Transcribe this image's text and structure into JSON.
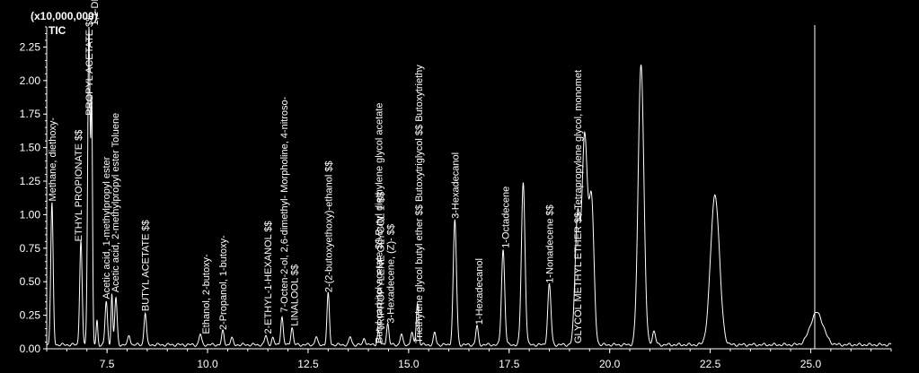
{
  "chart_data": {
    "type": "line",
    "y_scale_label": "(x10,000,000)",
    "trace_label": "TIC",
    "xlim": [
      6.0,
      27.0
    ],
    "ylim": [
      0.0,
      2.4
    ],
    "x_ticks": [
      7.5,
      10.0,
      12.5,
      15.0,
      17.5,
      20.0,
      22.5,
      25.0
    ],
    "x_tick_labels": [
      "7.5",
      "10.0",
      "12.5",
      "15.0",
      "17.5",
      "20.0",
      "22.5",
      "25.0"
    ],
    "y_ticks": [
      0.0,
      0.25,
      0.5,
      0.75,
      1.0,
      1.25,
      1.5,
      1.75,
      2.0,
      2.25
    ],
    "y_tick_labels": [
      "0.00",
      "0.25",
      "0.50",
      "0.75",
      "1.00",
      "1.25",
      "1.50",
      "1.75",
      "2.00",
      "2.25"
    ],
    "marker_x": 25.1,
    "baseline": 0.03,
    "peaks": [
      {
        "x": 6.13,
        "y": 1.05,
        "w": 0.03
      },
      {
        "x": 6.85,
        "y": 0.78,
        "w": 0.03
      },
      {
        "x": 7.05,
        "y": 2.4,
        "w": 0.03
      },
      {
        "x": 7.12,
        "y": 1.7,
        "w": 0.02
      },
      {
        "x": 7.25,
        "y": 0.18,
        "w": 0.02
      },
      {
        "x": 7.48,
        "y": 0.32,
        "w": 0.03
      },
      {
        "x": 7.62,
        "y": 0.38,
        "w": 0.02
      },
      {
        "x": 7.72,
        "y": 0.35,
        "w": 0.03
      },
      {
        "x": 8.05,
        "y": 0.07,
        "w": 0.03
      },
      {
        "x": 8.45,
        "y": 0.24,
        "w": 0.03
      },
      {
        "x": 9.82,
        "y": 0.08,
        "w": 0.03
      },
      {
        "x": 10.38,
        "y": 0.1,
        "w": 0.03
      },
      {
        "x": 10.6,
        "y": 0.05,
        "w": 0.03
      },
      {
        "x": 11.45,
        "y": 0.07,
        "w": 0.03
      },
      {
        "x": 11.62,
        "y": 0.05,
        "w": 0.03
      },
      {
        "x": 11.85,
        "y": 0.21,
        "w": 0.03
      },
      {
        "x": 12.1,
        "y": 0.13,
        "w": 0.03
      },
      {
        "x": 12.7,
        "y": 0.06,
        "w": 0.03
      },
      {
        "x": 13.0,
        "y": 0.38,
        "w": 0.03
      },
      {
        "x": 13.55,
        "y": 0.06,
        "w": 0.03
      },
      {
        "x": 13.9,
        "y": 0.05,
        "w": 0.03
      },
      {
        "x": 14.25,
        "y": 0.1,
        "w": 0.03
      },
      {
        "x": 14.48,
        "y": 0.16,
        "w": 0.03
      },
      {
        "x": 14.82,
        "y": 0.08,
        "w": 0.03
      },
      {
        "x": 15.08,
        "y": 0.09,
        "w": 0.03
      },
      {
        "x": 15.22,
        "y": 0.31,
        "w": 0.03
      },
      {
        "x": 15.65,
        "y": 0.09,
        "w": 0.03
      },
      {
        "x": 16.15,
        "y": 0.93,
        "w": 0.04
      },
      {
        "x": 16.7,
        "y": 0.14,
        "w": 0.03
      },
      {
        "x": 17.35,
        "y": 0.71,
        "w": 0.04
      },
      {
        "x": 17.85,
        "y": 1.21,
        "w": 0.045
      },
      {
        "x": 18.5,
        "y": 0.45,
        "w": 0.04
      },
      {
        "x": 19.2,
        "y": 0.95,
        "w": 0.06
      },
      {
        "x": 19.38,
        "y": 1.55,
        "w": 0.07
      },
      {
        "x": 19.55,
        "y": 1.05,
        "w": 0.06
      },
      {
        "x": 20.78,
        "y": 2.1,
        "w": 0.07
      },
      {
        "x": 21.1,
        "y": 0.1,
        "w": 0.04
      },
      {
        "x": 22.62,
        "y": 1.12,
        "w": 0.11
      },
      {
        "x": 25.15,
        "y": 0.24,
        "w": 0.16
      }
    ]
  },
  "peak_labels": [
    {
      "x": 6.13,
      "y": 1.08,
      "text": "Methane, diethoxy-"
    },
    {
      "x": 6.78,
      "y": 0.78,
      "text": "ETHYL PROPIONATE $$"
    },
    {
      "x": 7.05,
      "y": 1.72,
      "text": "PROPYL ACETATE $$"
    },
    {
      "x": 7.18,
      "y": 2.39,
      "text": "1,1-DIETHOXY ETHANE $$"
    },
    {
      "x": 7.48,
      "y": 0.35,
      "text": "Acetic acid, 1-methylpropyl ester"
    },
    {
      "x": 7.7,
      "y": 0.4,
      "text": "Acetic acid, 2-methylpropyl ester Toluene"
    },
    {
      "x": 8.45,
      "y": 0.26,
      "text": "BUTYL ACETATE $$"
    },
    {
      "x": 9.95,
      "y": 0.09,
      "text": "Ethanol, 2-butoxy-"
    },
    {
      "x": 10.38,
      "y": 0.12,
      "text": "2-Propanol, 1-butoxy-"
    },
    {
      "x": 11.5,
      "y": 0.09,
      "text": "2-ETHYL-1-HEXANOL $$"
    },
    {
      "x": 11.9,
      "y": 0.25,
      "text": "7-Octen-2-ol, 2,6-dimethyl- Morpholine, 4-nitroso-"
    },
    {
      "x": 12.15,
      "y": 0.15,
      "text": "LINALOOL $$"
    },
    {
      "x": 13.0,
      "y": 0.4,
      "text": "2-(2-butoxyethoxy)-ethanol $$"
    },
    {
      "x": 14.3,
      "y": 0.11,
      "text": "TRIPROPYLENE GLYCOL 1 $$"
    },
    {
      "x": 14.25,
      "y": 0.02,
      "text": "Butyl carbitol acetate $$ Butyl diethylene glycol acetate"
    },
    {
      "x": 14.55,
      "y": 0.17,
      "text": "3-Hexadecene, (Z)- $$"
    },
    {
      "x": 15.25,
      "y": 0.02,
      "text": "Triethylene glycol butyl ether $$ Butoxytriglycol $$ Butoxytriethy"
    },
    {
      "x": 16.15,
      "y": 0.95,
      "text": "3-Hexadecanol"
    },
    {
      "x": 16.75,
      "y": 0.16,
      "text": "1-Hexadecanol"
    },
    {
      "x": 17.4,
      "y": 0.73,
      "text": "1-Octadecene"
    },
    {
      "x": 18.5,
      "y": 0.47,
      "text": "1-Nonadecene $$"
    },
    {
      "x": 19.2,
      "y": 0.02,
      "text": "GLYCOL METHYL ETHER $$ Tetrapropylene glycol, monomet"
    }
  ]
}
